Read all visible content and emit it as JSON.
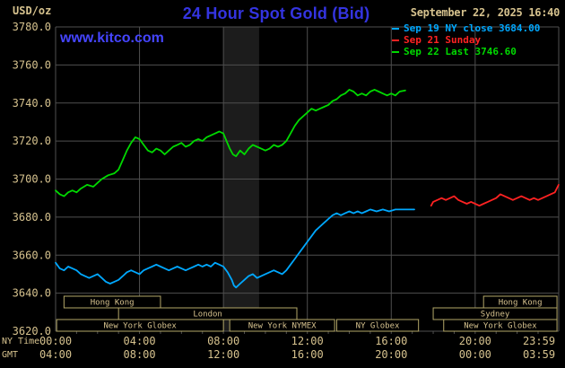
{
  "header": {
    "unit": "USD/oz",
    "title": "24 Hour Spot Gold (Bid)",
    "timestamp": "September 22, 2025 16:40",
    "site": "www.kitco.com"
  },
  "colors": {
    "background": "#000000",
    "grid": "#4f4f4f",
    "axis_text": "#d6c28e",
    "session_border": "#b3a768",
    "title_blue": "#3434e0",
    "link_blue": "#4545ff",
    "band": "#1c1c1c",
    "close_line": "#00a8ff",
    "sunday_line": "#ff2222",
    "today_line": "#00d900"
  },
  "legend": [
    {
      "label": "Sep 19 NY close 3684.00",
      "color": "#00a8ff"
    },
    {
      "label": "Sep 21 Sunday",
      "color": "#ff2222"
    },
    {
      "label": "Sep 22 Last 3746.60",
      "color": "#00d900"
    }
  ],
  "chart_data": {
    "type": "line",
    "title": "24 Hour Spot Gold (Bid)",
    "ylabel": "USD/oz",
    "x_row1_label": "NY Time",
    "x_row2_label": "GMT",
    "ylim": [
      3620,
      3780
    ],
    "ytick_step": 20,
    "xlim": [
      0,
      23.983
    ],
    "xticks": [
      {
        "h": 0,
        "ny": "00:00",
        "gmt": "04:00"
      },
      {
        "h": 4,
        "ny": "04:00",
        "gmt": "08:00"
      },
      {
        "h": 8,
        "ny": "08:00",
        "gmt": "12:00"
      },
      {
        "h": 12,
        "ny": "12:00",
        "gmt": "16:00"
      },
      {
        "h": 16,
        "ny": "16:00",
        "gmt": "20:00"
      },
      {
        "h": 20,
        "ny": "20:00",
        "gmt": "00:00"
      },
      {
        "h": 23.983,
        "ny": "23:59",
        "gmt": "03:59"
      }
    ],
    "shaded_band": {
      "from": 8,
      "to": 9.7
    },
    "series": [
      {
        "name": "Sep 19 NY close",
        "color": "#00a8ff",
        "points": [
          [
            0,
            3656
          ],
          [
            0.2,
            3653
          ],
          [
            0.4,
            3652
          ],
          [
            0.6,
            3654
          ],
          [
            0.8,
            3653
          ],
          [
            1,
            3652
          ],
          [
            1.2,
            3650
          ],
          [
            1.4,
            3649
          ],
          [
            1.6,
            3648
          ],
          [
            1.8,
            3649
          ],
          [
            2,
            3650
          ],
          [
            2.2,
            3648
          ],
          [
            2.4,
            3646
          ],
          [
            2.6,
            3645
          ],
          [
            2.8,
            3646
          ],
          [
            3,
            3647
          ],
          [
            3.2,
            3649
          ],
          [
            3.4,
            3651
          ],
          [
            3.6,
            3652
          ],
          [
            3.8,
            3651
          ],
          [
            4,
            3650
          ],
          [
            4.2,
            3652
          ],
          [
            4.4,
            3653
          ],
          [
            4.6,
            3654
          ],
          [
            4.8,
            3655
          ],
          [
            5,
            3654
          ],
          [
            5.2,
            3653
          ],
          [
            5.4,
            3652
          ],
          [
            5.6,
            3653
          ],
          [
            5.8,
            3654
          ],
          [
            6,
            3653
          ],
          [
            6.2,
            3652
          ],
          [
            6.4,
            3653
          ],
          [
            6.6,
            3654
          ],
          [
            6.8,
            3655
          ],
          [
            7,
            3654
          ],
          [
            7.2,
            3655
          ],
          [
            7.4,
            3654
          ],
          [
            7.6,
            3656
          ],
          [
            7.8,
            3655
          ],
          [
            8,
            3654
          ],
          [
            8.2,
            3651
          ],
          [
            8.4,
            3647
          ],
          [
            8.5,
            3644
          ],
          [
            8.6,
            3643
          ],
          [
            8.8,
            3645
          ],
          [
            9,
            3647
          ],
          [
            9.2,
            3649
          ],
          [
            9.4,
            3650
          ],
          [
            9.6,
            3648
          ],
          [
            9.8,
            3649
          ],
          [
            10,
            3650
          ],
          [
            10.2,
            3651
          ],
          [
            10.4,
            3652
          ],
          [
            10.6,
            3651
          ],
          [
            10.8,
            3650
          ],
          [
            11,
            3652
          ],
          [
            11.2,
            3655
          ],
          [
            11.4,
            3658
          ],
          [
            11.6,
            3661
          ],
          [
            11.8,
            3664
          ],
          [
            12,
            3667
          ],
          [
            12.2,
            3670
          ],
          [
            12.4,
            3673
          ],
          [
            12.6,
            3675
          ],
          [
            12.8,
            3677
          ],
          [
            13,
            3679
          ],
          [
            13.2,
            3681
          ],
          [
            13.4,
            3682
          ],
          [
            13.6,
            3681
          ],
          [
            13.8,
            3682
          ],
          [
            14,
            3683
          ],
          [
            14.2,
            3682
          ],
          [
            14.4,
            3683
          ],
          [
            14.6,
            3682
          ],
          [
            14.8,
            3683
          ],
          [
            15,
            3684
          ],
          [
            15.3,
            3683
          ],
          [
            15.6,
            3684
          ],
          [
            15.9,
            3683
          ],
          [
            16.2,
            3684
          ],
          [
            16.5,
            3684
          ],
          [
            16.8,
            3684
          ],
          [
            17.1,
            3684
          ]
        ]
      },
      {
        "name": "Sep 21 Sunday",
        "color": "#ff2222",
        "points": [
          [
            17.9,
            3686
          ],
          [
            18,
            3688
          ],
          [
            18.2,
            3689
          ],
          [
            18.4,
            3690
          ],
          [
            18.6,
            3689
          ],
          [
            18.8,
            3690
          ],
          [
            19,
            3691
          ],
          [
            19.2,
            3689
          ],
          [
            19.4,
            3688
          ],
          [
            19.6,
            3687
          ],
          [
            19.8,
            3688
          ],
          [
            20,
            3687
          ],
          [
            20.2,
            3686
          ],
          [
            20.4,
            3687
          ],
          [
            20.6,
            3688
          ],
          [
            20.8,
            3689
          ],
          [
            21,
            3690
          ],
          [
            21.2,
            3692
          ],
          [
            21.4,
            3691
          ],
          [
            21.6,
            3690
          ],
          [
            21.8,
            3689
          ],
          [
            22,
            3690
          ],
          [
            22.2,
            3691
          ],
          [
            22.4,
            3690
          ],
          [
            22.6,
            3689
          ],
          [
            22.8,
            3690
          ],
          [
            23,
            3689
          ],
          [
            23.2,
            3690
          ],
          [
            23.4,
            3691
          ],
          [
            23.6,
            3692
          ],
          [
            23.8,
            3693
          ],
          [
            23.98,
            3697
          ]
        ]
      },
      {
        "name": "Sep 22",
        "color": "#00d900",
        "points": [
          [
            0,
            3694
          ],
          [
            0.2,
            3692
          ],
          [
            0.4,
            3691
          ],
          [
            0.6,
            3693
          ],
          [
            0.8,
            3694
          ],
          [
            1,
            3693
          ],
          [
            1.2,
            3695
          ],
          [
            1.5,
            3697
          ],
          [
            1.8,
            3696
          ],
          [
            2,
            3698
          ],
          [
            2.2,
            3700
          ],
          [
            2.5,
            3702
          ],
          [
            2.8,
            3703
          ],
          [
            3,
            3705
          ],
          [
            3.2,
            3710
          ],
          [
            3.4,
            3715
          ],
          [
            3.6,
            3719
          ],
          [
            3.8,
            3722
          ],
          [
            4,
            3721
          ],
          [
            4.2,
            3718
          ],
          [
            4.4,
            3715
          ],
          [
            4.6,
            3714
          ],
          [
            4.8,
            3716
          ],
          [
            5,
            3715
          ],
          [
            5.2,
            3713
          ],
          [
            5.4,
            3715
          ],
          [
            5.6,
            3717
          ],
          [
            5.8,
            3718
          ],
          [
            6,
            3719
          ],
          [
            6.2,
            3717
          ],
          [
            6.4,
            3718
          ],
          [
            6.6,
            3720
          ],
          [
            6.8,
            3721
          ],
          [
            7,
            3720
          ],
          [
            7.2,
            3722
          ],
          [
            7.4,
            3723
          ],
          [
            7.6,
            3724
          ],
          [
            7.8,
            3725
          ],
          [
            8,
            3724
          ],
          [
            8.15,
            3720
          ],
          [
            8.3,
            3716
          ],
          [
            8.45,
            3713
          ],
          [
            8.6,
            3712
          ],
          [
            8.8,
            3715
          ],
          [
            9,
            3713
          ],
          [
            9.2,
            3716
          ],
          [
            9.4,
            3718
          ],
          [
            9.6,
            3717
          ],
          [
            9.8,
            3716
          ],
          [
            10,
            3715
          ],
          [
            10.2,
            3716
          ],
          [
            10.4,
            3718
          ],
          [
            10.6,
            3717
          ],
          [
            10.8,
            3718
          ],
          [
            11,
            3720
          ],
          [
            11.2,
            3724
          ],
          [
            11.4,
            3728
          ],
          [
            11.6,
            3731
          ],
          [
            11.8,
            3733
          ],
          [
            12,
            3735
          ],
          [
            12.2,
            3737
          ],
          [
            12.4,
            3736
          ],
          [
            12.6,
            3737
          ],
          [
            12.8,
            3738
          ],
          [
            13,
            3739
          ],
          [
            13.2,
            3741
          ],
          [
            13.4,
            3742
          ],
          [
            13.6,
            3744
          ],
          [
            13.8,
            3745
          ],
          [
            14,
            3747
          ],
          [
            14.2,
            3746
          ],
          [
            14.4,
            3744
          ],
          [
            14.6,
            3745
          ],
          [
            14.8,
            3744
          ],
          [
            15,
            3746
          ],
          [
            15.2,
            3747
          ],
          [
            15.4,
            3746
          ],
          [
            15.6,
            3745
          ],
          [
            15.8,
            3744
          ],
          [
            16,
            3745
          ],
          [
            16.2,
            3744
          ],
          [
            16.4,
            3746
          ],
          [
            16.67,
            3746.6
          ]
        ]
      }
    ],
    "sessions": [
      {
        "row": 0,
        "label": "Hong Kong",
        "from": 0.4,
        "to": 5
      },
      {
        "row": 0,
        "label": "Hong Kong",
        "from": 20.4,
        "to": 23.9
      },
      {
        "row": 1,
        "label": "London",
        "from": 3,
        "to": 11.5
      },
      {
        "row": 1,
        "label": "Sydney",
        "from": 18,
        "to": 23.9
      },
      {
        "row": 2,
        "label": "New York Globex",
        "from": 0.05,
        "to": 8
      },
      {
        "row": 2,
        "label": "New York NYMEX",
        "from": 8.3,
        "to": 13.3
      },
      {
        "row": 2,
        "label": "NY Globex",
        "from": 13.4,
        "to": 17.3
      },
      {
        "row": 2,
        "label": "New York Globex",
        "from": 18.5,
        "to": 23.9
      }
    ]
  }
}
